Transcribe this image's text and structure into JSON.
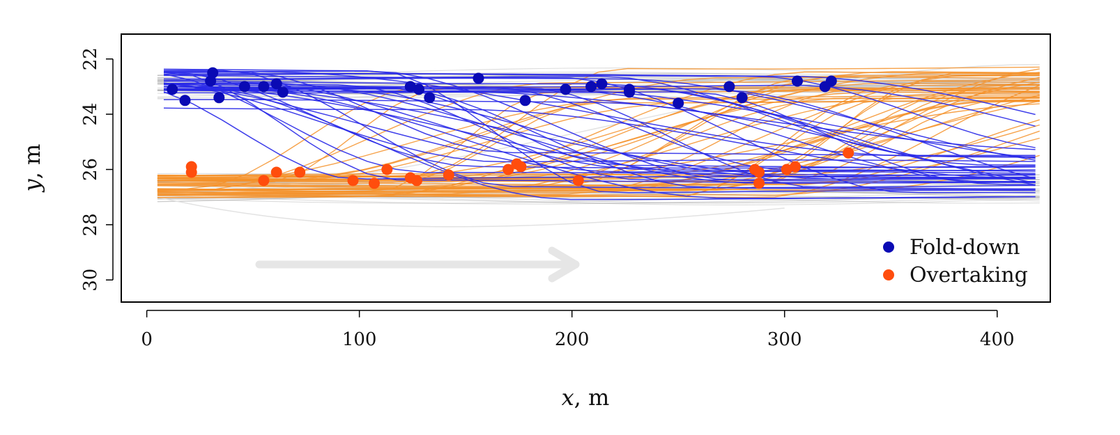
{
  "chart_data": {
    "type": "scatter",
    "xlabel_var": "x",
    "xlabel_unit": ", m",
    "ylabel_var": "y",
    "ylabel_unit": ", m",
    "xlim": [
      -12,
      425
    ],
    "ylim": [
      30.8,
      21.1
    ],
    "y_axis_reversed": true,
    "x_ticks": [
      0,
      100,
      200,
      300,
      400
    ],
    "y_ticks": [
      22,
      24,
      26,
      28,
      30
    ],
    "x_tick_labels": [
      "0",
      "100",
      "200",
      "300",
      "400"
    ],
    "y_tick_labels": [
      "22",
      "24",
      "26",
      "28",
      "30"
    ],
    "grid": false,
    "legend_position": "bottom-right",
    "series": [
      {
        "name": "Fold-down",
        "color": "#0a0ab4",
        "x": [
          12,
          18,
          30,
          31,
          34,
          46,
          55,
          61,
          64,
          124,
          128,
          133,
          156,
          178,
          197,
          209,
          214,
          227,
          227,
          250,
          274,
          280,
          306,
          319,
          322
        ],
        "y": [
          23.1,
          23.5,
          22.8,
          22.5,
          23.4,
          23.0,
          23.0,
          22.9,
          23.2,
          23.0,
          23.1,
          23.4,
          22.7,
          23.5,
          23.1,
          23.0,
          22.9,
          23.1,
          23.2,
          23.6,
          23.0,
          23.4,
          22.8,
          23.0,
          22.8
        ]
      },
      {
        "name": "Overtaking",
        "color": "#ff4d0d",
        "x": [
          21,
          21,
          55,
          61,
          72,
          97,
          107,
          113,
          124,
          127,
          142,
          170,
          174,
          176,
          203,
          286,
          288,
          288,
          301,
          305,
          330
        ],
        "y": [
          25.9,
          26.1,
          26.4,
          26.1,
          26.1,
          26.4,
          26.5,
          26.0,
          26.3,
          26.4,
          26.2,
          26.0,
          25.8,
          25.9,
          26.4,
          26.0,
          26.1,
          26.5,
          26.0,
          25.9,
          25.4
        ]
      }
    ],
    "background_trajectories_color": "#9a9a9a",
    "fold_down_line_color": "#2a2ae8",
    "overtaking_line_color": "#f5922a",
    "direction_arrow_color": "#e6e6e6"
  }
}
